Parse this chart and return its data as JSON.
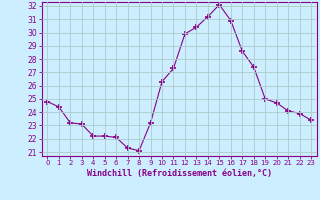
{
  "x": [
    0,
    1,
    2,
    3,
    4,
    5,
    6,
    7,
    8,
    9,
    10,
    11,
    12,
    13,
    14,
    15,
    16,
    17,
    18,
    19,
    20,
    21,
    22,
    23
  ],
  "y": [
    24.8,
    24.4,
    23.2,
    23.1,
    22.2,
    22.2,
    22.1,
    21.3,
    21.1,
    23.2,
    26.3,
    27.3,
    29.9,
    30.4,
    31.2,
    32.1,
    30.9,
    28.6,
    27.4,
    25.0,
    24.7,
    24.1,
    23.9,
    23.4
  ],
  "line_color": "#880088",
  "marker": "+",
  "marker_size": 4,
  "bg_color": "#cceeff",
  "grid_color": "#aacccc",
  "ylim": [
    21,
    32
  ],
  "yticks": [
    21,
    22,
    23,
    24,
    25,
    26,
    27,
    28,
    29,
    30,
    31,
    32
  ],
  "xlabel": "Windchill (Refroidissement éolien,°C)",
  "xlabel_color": "#880088",
  "tick_color": "#880088",
  "axis_color": "#880088"
}
